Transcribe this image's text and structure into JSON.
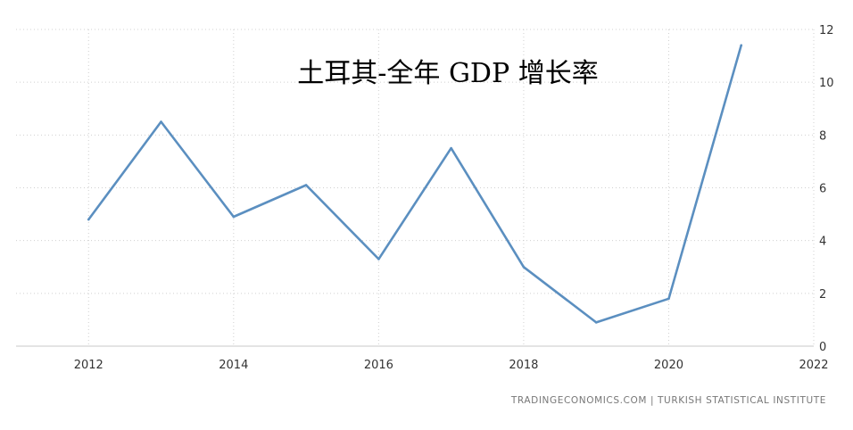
{
  "chart_data": {
    "type": "line",
    "title": "土耳其-全年 GDP 增长率",
    "xlabel": "",
    "ylabel": "",
    "xlim": [
      2011,
      2022
    ],
    "ylim": [
      0,
      12
    ],
    "x_ticks": [
      "2012",
      "2014",
      "2016",
      "2018",
      "2020",
      "2022"
    ],
    "y_ticks": [
      "0",
      "2",
      "4",
      "6",
      "8",
      "10",
      "12"
    ],
    "y_axis_side": "right",
    "grid": true,
    "legend": "none",
    "series": [
      {
        "x": [
          2012,
          2013,
          2014,
          2015,
          2016,
          2017,
          2018,
          2019,
          2020,
          2021
        ],
        "values": [
          4.8,
          8.5,
          4.9,
          6.1,
          3.3,
          7.5,
          3.0,
          0.9,
          1.8,
          11.4
        ],
        "color": "#5b8fc0"
      }
    ]
  },
  "source_text": "TRADINGECONOMICS.COM  |  TURKISH STATISTICAL INSTITUTE"
}
